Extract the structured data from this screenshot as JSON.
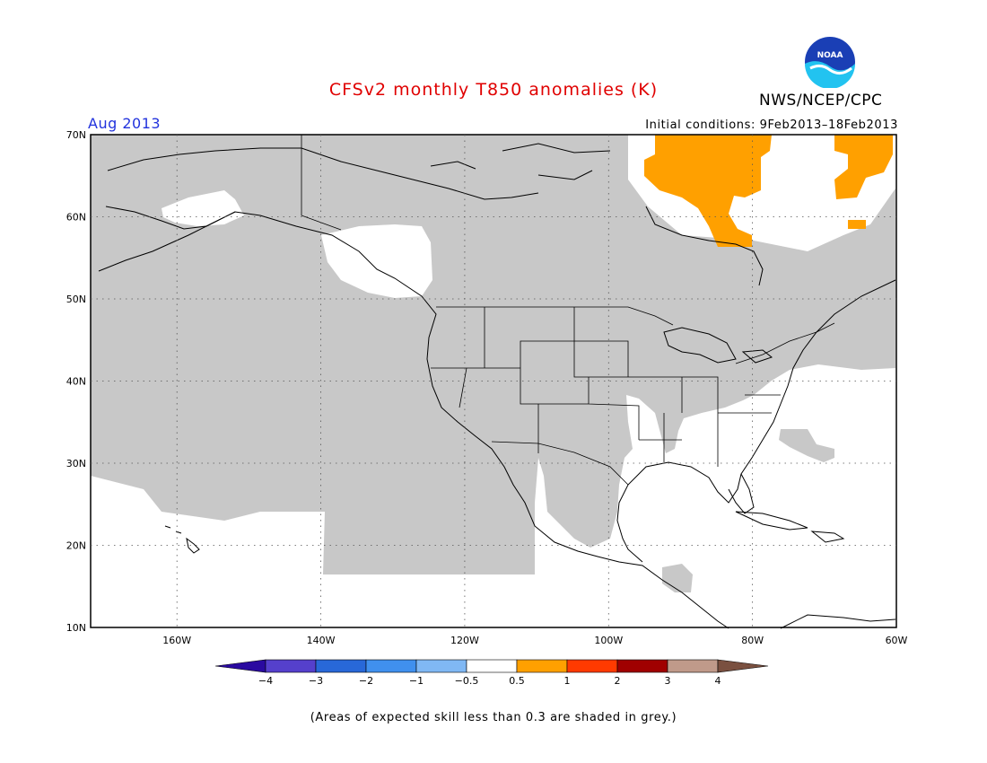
{
  "title": "CFSv2 monthly T850 anomalies (K)",
  "agency": "NWS/NCEP/CPC",
  "logo_text": "NOAA",
  "valid_month": "Aug 2013",
  "initial_conditions": "Initial conditions: 9Feb2013–18Feb2013",
  "footnote": "(Areas of expected skill less than 0.3 are shaded in grey.)",
  "colors": {
    "title": "#e00000",
    "month": "#2233dd",
    "grey_mask": "#c8c8c8",
    "anomaly_pos_weak": "#ffa000"
  },
  "map": {
    "lon_range": [
      -172,
      -60
    ],
    "lat_range": [
      10,
      70
    ],
    "lat_labels": [
      "70N",
      "60N",
      "50N",
      "40N",
      "30N",
      "20N",
      "10N"
    ],
    "lon_labels": [
      "160W",
      "140W",
      "120W",
      "100W",
      "80W",
      "60W"
    ]
  },
  "legend": {
    "ticks": [
      "−4",
      "−3",
      "−2",
      "−1",
      "−0.5",
      "0.5",
      "1",
      "2",
      "3",
      "4"
    ],
    "colors": [
      "#2a0aa0",
      "#5540cc",
      "#2868d8",
      "#4090ee",
      "#80b8f4",
      "#ffffff",
      "#ffa000",
      "#ff3a00",
      "#a00000",
      "#c09a8a",
      "#7a5040"
    ]
  }
}
